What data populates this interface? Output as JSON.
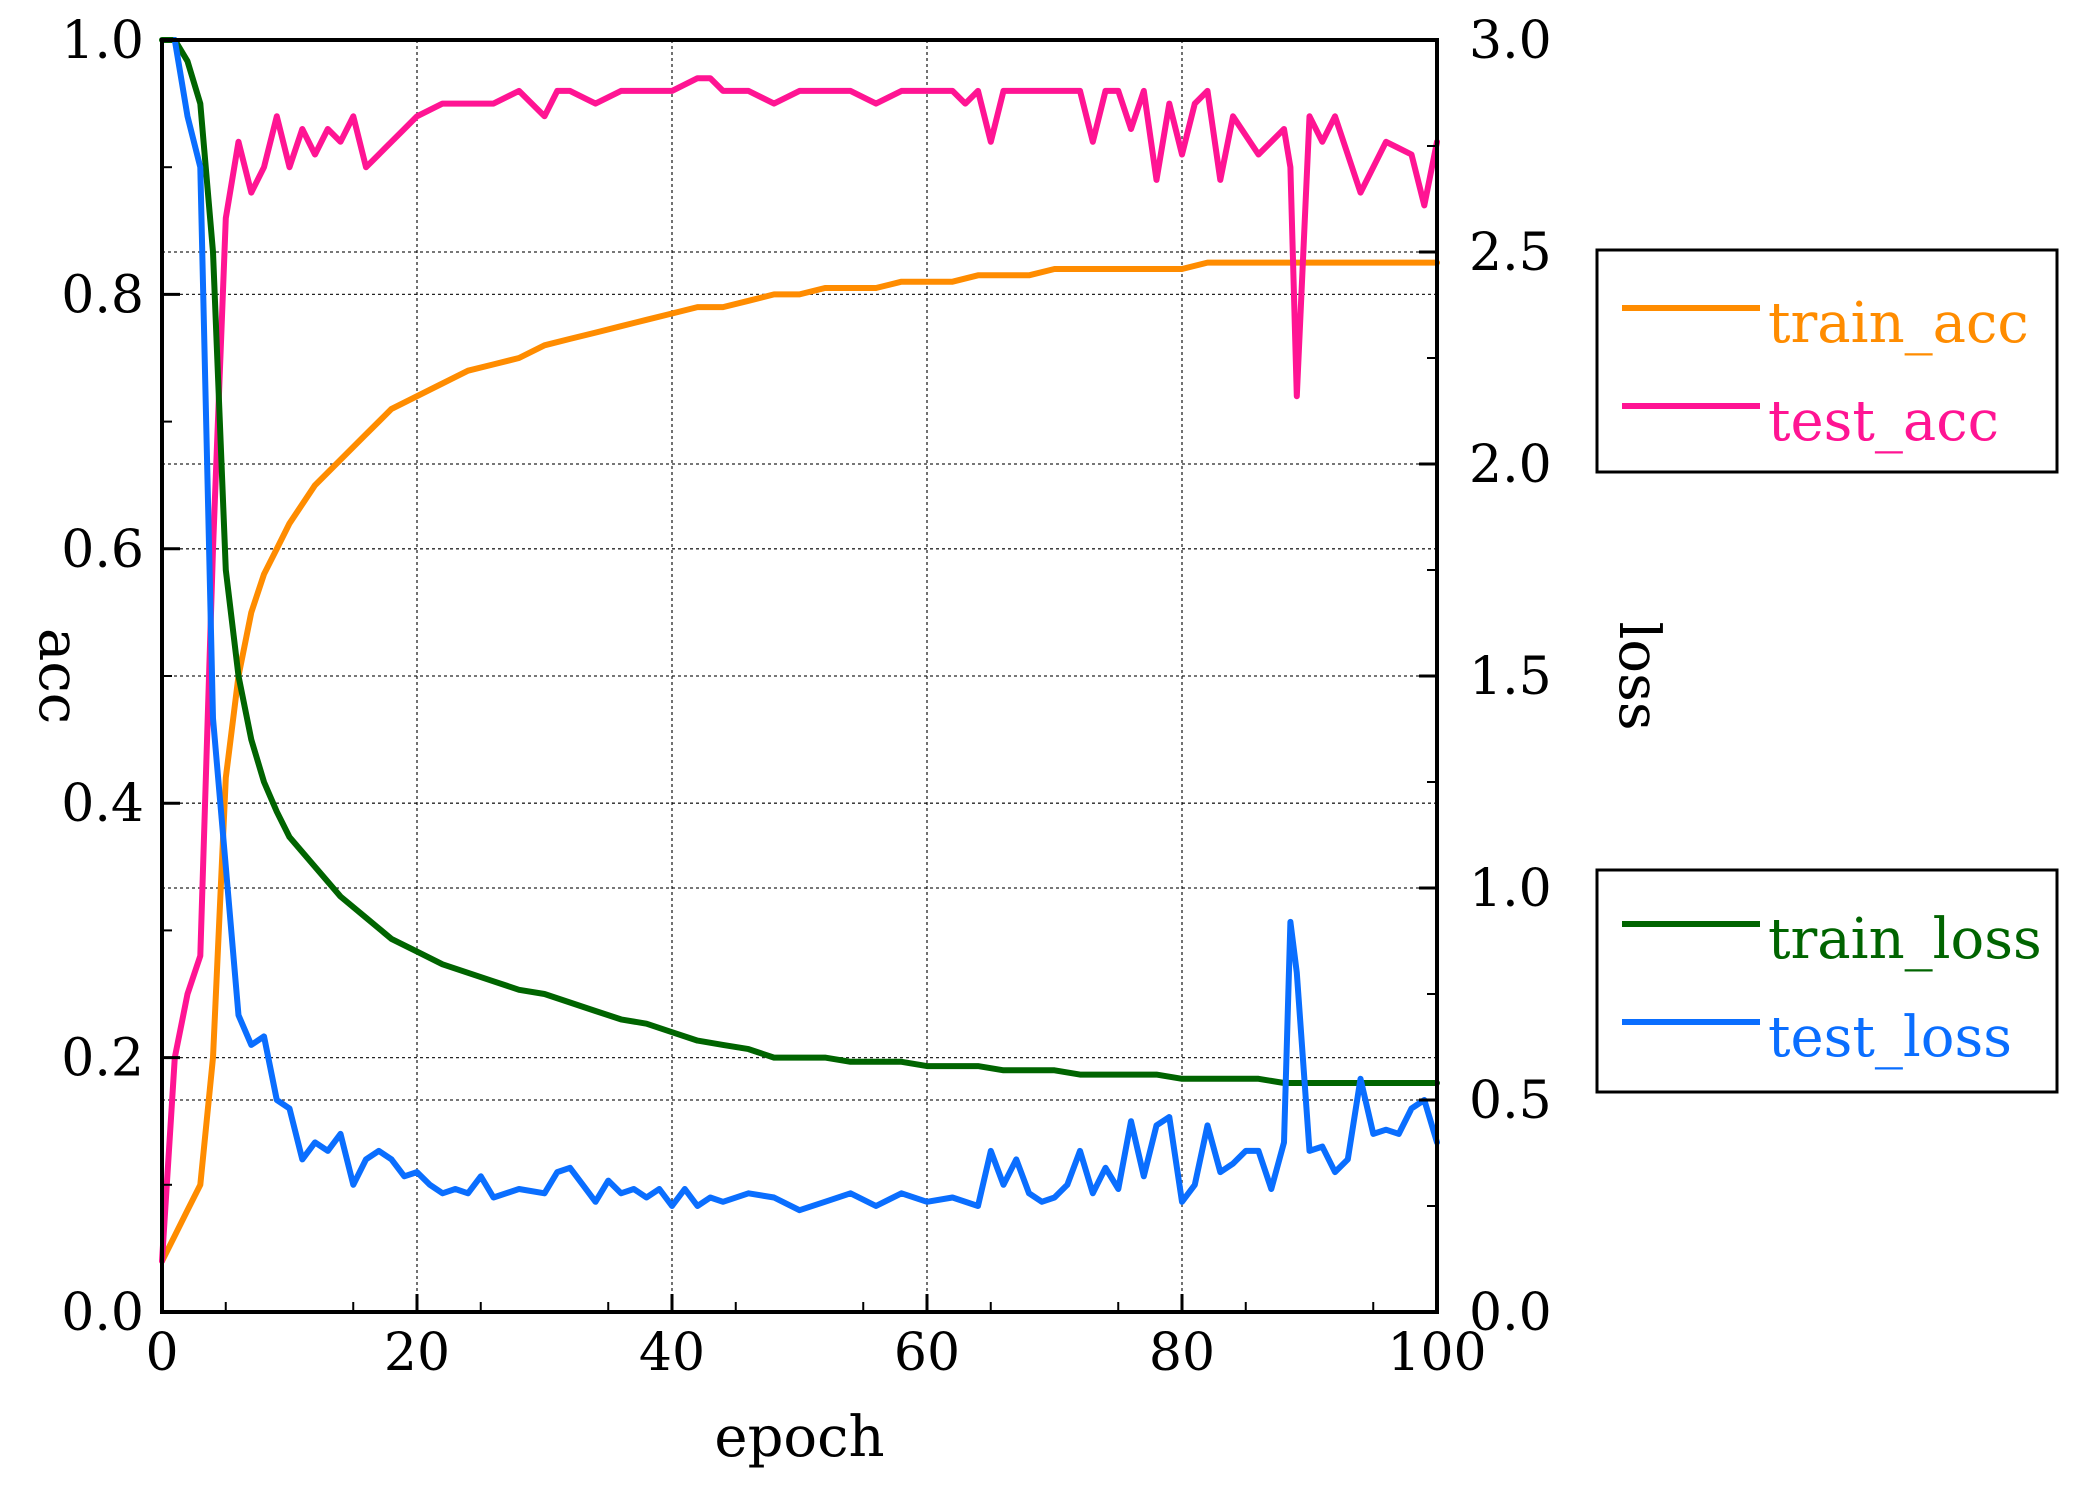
{
  "chart_data": {
    "type": "line",
    "xlabel": "epoch",
    "ylabel_left": "acc",
    "ylabel_right": "loss",
    "xlim": [
      0,
      100
    ],
    "ylim_left": [
      0.0,
      1.0
    ],
    "ylim_right": [
      0.0,
      3.0
    ],
    "grid": true,
    "x_ticks": [
      "0",
      "20",
      "40",
      "60",
      "80",
      "100"
    ],
    "y_left_ticks": [
      "0.0",
      "0.2",
      "0.4",
      "0.6",
      "0.8",
      "1.0"
    ],
    "y_right_ticks": [
      "0.0",
      "0.5",
      "1.0",
      "1.5",
      "2.0",
      "2.5",
      "3.0"
    ],
    "legend_acc": {
      "placement": "right-upper",
      "entries": [
        "train_acc",
        "test_acc"
      ]
    },
    "legend_loss": {
      "placement": "right-lower",
      "entries": [
        "train_loss",
        "test_loss"
      ]
    },
    "series": [
      {
        "name": "train_acc",
        "axis": "left",
        "color": "#FF8C00",
        "x": [
          0,
          1,
          2,
          3,
          4,
          5,
          6,
          7,
          8,
          9,
          10,
          12,
          14,
          16,
          18,
          20,
          22,
          24,
          26,
          28,
          30,
          32,
          34,
          36,
          38,
          40,
          42,
          44,
          46,
          48,
          50,
          52,
          54,
          56,
          58,
          60,
          62,
          64,
          66,
          68,
          70,
          72,
          74,
          76,
          78,
          80,
          82,
          84,
          86,
          88,
          90,
          92,
          94,
          96,
          98,
          100
        ],
        "values": [
          0.04,
          0.06,
          0.08,
          0.1,
          0.2,
          0.42,
          0.5,
          0.55,
          0.58,
          0.6,
          0.62,
          0.65,
          0.67,
          0.69,
          0.71,
          0.72,
          0.73,
          0.74,
          0.745,
          0.75,
          0.76,
          0.765,
          0.77,
          0.775,
          0.78,
          0.785,
          0.79,
          0.79,
          0.795,
          0.8,
          0.8,
          0.805,
          0.805,
          0.805,
          0.81,
          0.81,
          0.81,
          0.815,
          0.815,
          0.815,
          0.82,
          0.82,
          0.82,
          0.82,
          0.82,
          0.82,
          0.825,
          0.825,
          0.825,
          0.825,
          0.825,
          0.825,
          0.825,
          0.825,
          0.825,
          0.825
        ]
      },
      {
        "name": "test_acc",
        "axis": "left",
        "color": "#FF1493",
        "x": [
          0,
          1,
          2,
          3,
          4,
          5,
          6,
          7,
          8,
          9,
          10,
          11,
          12,
          13,
          14,
          15,
          16,
          17,
          18,
          20,
          22,
          24,
          26,
          28,
          30,
          31,
          32,
          34,
          36,
          38,
          40,
          42,
          43,
          44,
          46,
          48,
          50,
          52,
          54,
          56,
          58,
          60,
          62,
          63,
          64,
          65,
          66,
          68,
          70,
          72,
          73,
          74,
          75,
          76,
          77,
          78,
          79,
          80,
          81,
          82,
          83,
          84,
          86,
          88,
          88.5,
          89,
          90,
          91,
          92,
          94,
          96,
          98,
          99,
          100
        ],
        "values": [
          0.04,
          0.2,
          0.25,
          0.28,
          0.6,
          0.86,
          0.92,
          0.88,
          0.9,
          0.94,
          0.9,
          0.93,
          0.91,
          0.93,
          0.92,
          0.94,
          0.9,
          0.91,
          0.92,
          0.94,
          0.95,
          0.95,
          0.95,
          0.96,
          0.94,
          0.96,
          0.96,
          0.95,
          0.96,
          0.96,
          0.96,
          0.97,
          0.97,
          0.96,
          0.96,
          0.95,
          0.96,
          0.96,
          0.96,
          0.95,
          0.96,
          0.96,
          0.96,
          0.95,
          0.96,
          0.92,
          0.96,
          0.96,
          0.96,
          0.96,
          0.92,
          0.96,
          0.96,
          0.93,
          0.96,
          0.89,
          0.95,
          0.91,
          0.95,
          0.96,
          0.89,
          0.94,
          0.91,
          0.93,
          0.9,
          0.72,
          0.94,
          0.92,
          0.94,
          0.88,
          0.92,
          0.91,
          0.87,
          0.92
        ]
      },
      {
        "name": "train_loss",
        "axis": "right",
        "color": "#006400",
        "x": [
          0,
          1,
          2,
          3,
          4,
          5,
          6,
          7,
          8,
          9,
          10,
          12,
          14,
          16,
          18,
          20,
          22,
          24,
          26,
          28,
          30,
          32,
          34,
          36,
          38,
          40,
          42,
          44,
          46,
          48,
          50,
          52,
          54,
          56,
          58,
          60,
          62,
          64,
          66,
          68,
          70,
          72,
          74,
          76,
          78,
          80,
          82,
          84,
          86,
          88,
          90,
          92,
          94,
          96,
          98,
          100
        ],
        "values": [
          3.0,
          3.0,
          2.95,
          2.85,
          2.5,
          1.75,
          1.5,
          1.35,
          1.25,
          1.18,
          1.12,
          1.05,
          0.98,
          0.93,
          0.88,
          0.85,
          0.82,
          0.8,
          0.78,
          0.76,
          0.75,
          0.73,
          0.71,
          0.69,
          0.68,
          0.66,
          0.64,
          0.63,
          0.62,
          0.6,
          0.6,
          0.6,
          0.59,
          0.59,
          0.59,
          0.58,
          0.58,
          0.58,
          0.57,
          0.57,
          0.57,
          0.56,
          0.56,
          0.56,
          0.56,
          0.55,
          0.55,
          0.55,
          0.55,
          0.54,
          0.54,
          0.54,
          0.54,
          0.54,
          0.54,
          0.54
        ]
      },
      {
        "name": "test_loss",
        "axis": "right",
        "color": "#0A6EFF",
        "x": [
          1,
          2,
          3,
          4,
          5,
          6,
          7,
          8,
          9,
          10,
          11,
          12,
          13,
          14,
          15,
          16,
          17,
          18,
          19,
          20,
          21,
          22,
          23,
          24,
          25,
          26,
          28,
          30,
          31,
          32,
          33,
          34,
          35,
          36,
          37,
          38,
          39,
          40,
          41,
          42,
          43,
          44,
          46,
          48,
          50,
          52,
          54,
          56,
          58,
          60,
          62,
          64,
          65,
          66,
          67,
          68,
          69,
          70,
          71,
          72,
          73,
          74,
          75,
          76,
          77,
          78,
          79,
          80,
          81,
          82,
          83,
          84,
          85,
          86,
          87,
          88,
          88.5,
          89,
          90,
          91,
          92,
          93,
          94,
          95,
          96,
          97,
          98,
          99,
          100
        ],
        "values": [
          3.0,
          2.82,
          2.7,
          1.4,
          1.05,
          0.7,
          0.63,
          0.65,
          0.5,
          0.48,
          0.36,
          0.4,
          0.38,
          0.42,
          0.3,
          0.36,
          0.38,
          0.36,
          0.32,
          0.33,
          0.3,
          0.28,
          0.29,
          0.28,
          0.32,
          0.27,
          0.29,
          0.28,
          0.33,
          0.34,
          0.3,
          0.26,
          0.31,
          0.28,
          0.29,
          0.27,
          0.29,
          0.25,
          0.29,
          0.25,
          0.27,
          0.26,
          0.28,
          0.27,
          0.24,
          0.26,
          0.28,
          0.25,
          0.28,
          0.26,
          0.27,
          0.25,
          0.38,
          0.3,
          0.36,
          0.28,
          0.26,
          0.27,
          0.3,
          0.38,
          0.28,
          0.34,
          0.29,
          0.45,
          0.32,
          0.44,
          0.46,
          0.26,
          0.3,
          0.44,
          0.33,
          0.35,
          0.38,
          0.38,
          0.29,
          0.4,
          0.92,
          0.8,
          0.38,
          0.39,
          0.33,
          0.36,
          0.55,
          0.42,
          0.43,
          0.42,
          0.48,
          0.5,
          0.4
        ]
      }
    ]
  }
}
